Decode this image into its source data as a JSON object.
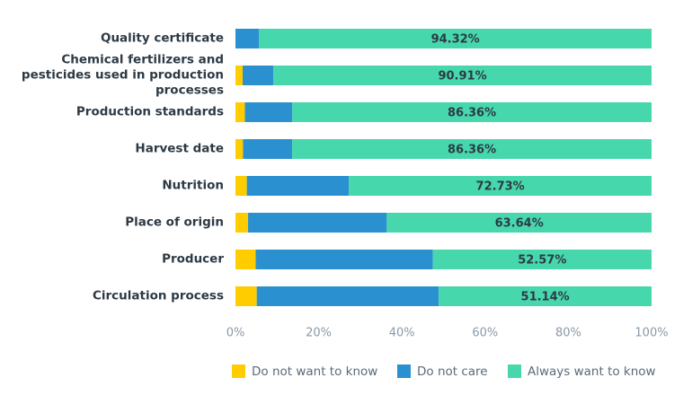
{
  "chart_data": {
    "type": "stacked-bar-horizontal",
    "categories": [
      "Quality certificate",
      "Chemical fertilizers and pesticides used in production processes",
      "Production standards",
      "Harvest date",
      "Nutrition",
      "Place of origin",
      "Producer",
      "Circulation process"
    ],
    "series": [
      {
        "name": "Do not want to know",
        "color": "#ffcc00",
        "values": [
          0,
          1.73,
          2.27,
          1.82,
          2.73,
          3.03,
          4.86,
          5.11
        ]
      },
      {
        "name": "Do not care",
        "color": "#2b90cf",
        "values": [
          5.68,
          7.36,
          11.37,
          11.82,
          24.54,
          33.33,
          42.57,
          43.75
        ]
      },
      {
        "name": "Always want to know",
        "color": "#47d7ac",
        "values": [
          94.32,
          90.91,
          86.36,
          86.36,
          72.73,
          63.64,
          52.57,
          51.14
        ],
        "value_labels": [
          "94.32%",
          "90.91%",
          "86.36%",
          "86.36%",
          "72.73%",
          "63.64%",
          "52.57%",
          "51.14%"
        ]
      }
    ],
    "xlim": [
      0,
      100
    ],
    "xticks": [
      {
        "value": 0,
        "label": "0%"
      },
      {
        "value": 20,
        "label": "20%"
      },
      {
        "value": 40,
        "label": "40%"
      },
      {
        "value": 60,
        "label": "60%"
      },
      {
        "value": 80,
        "label": "80%"
      },
      {
        "value": 100,
        "label": "100%"
      }
    ]
  }
}
